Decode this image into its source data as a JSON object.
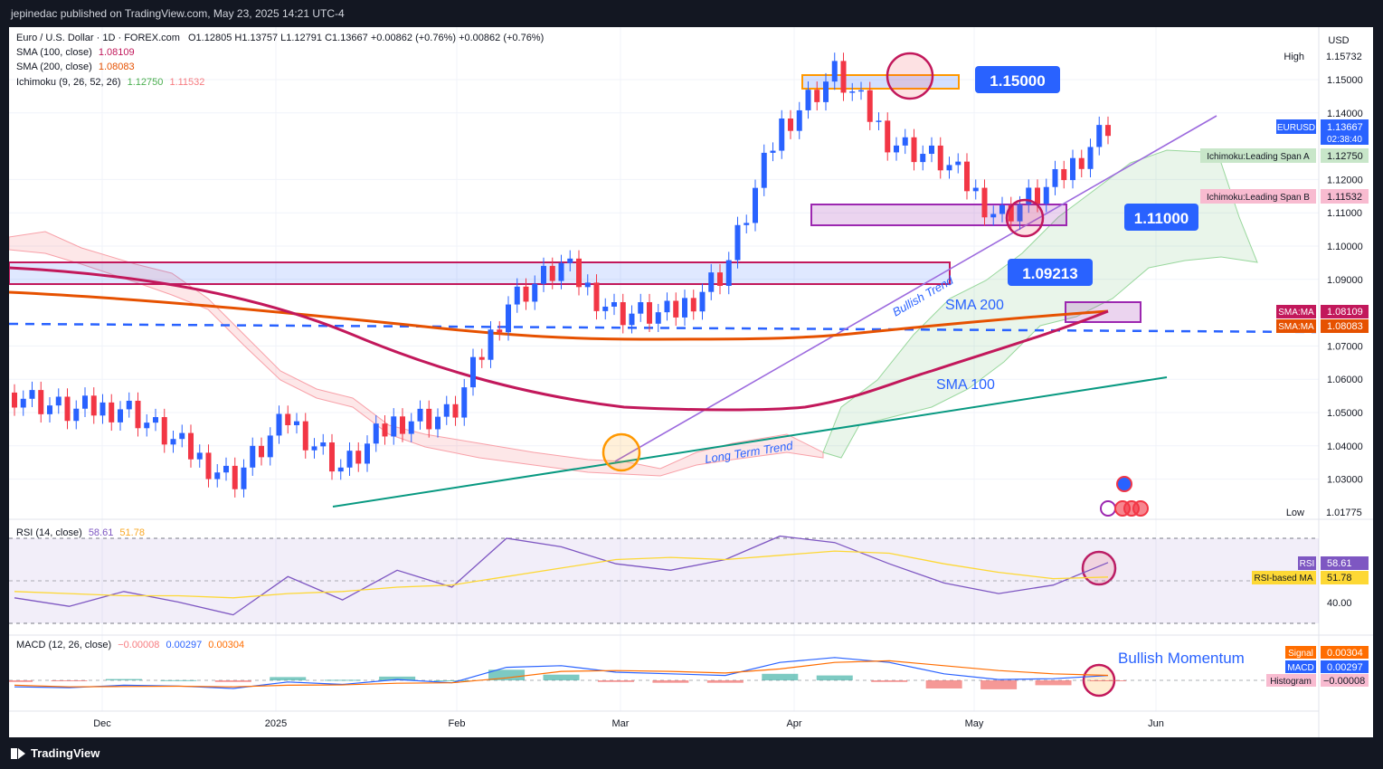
{
  "header": {
    "published": "jepinedac published on TradingView.com, May 23, 2025 14:21 UTC-4"
  },
  "legend": {
    "symbol": "Euro / U.S. Dollar · 1D · FOREX.com",
    "ohlc": "O1.12805  H1.13757  L1.12791  C1.13667  +0.00862 (+0.76%)  +0.00862 (+0.76%)",
    "sma100_label": "SMA (100, close)",
    "sma100_value": "1.08109",
    "sma200_label": "SMA (200, close)",
    "sma200_value": "1.08083",
    "ichimoku_label": "Ichimoku (9, 26, 52, 26)",
    "ichimoku_a": "1.12750",
    "ichimoku_b": "1.11532"
  },
  "currency": "USD",
  "price_axis": {
    "ticks": [
      "1.15000",
      "1.14000",
      "1.12000",
      "1.11000",
      "1.10000",
      "1.09000",
      "1.07000",
      "1.06000",
      "1.05000",
      "1.04000",
      "1.03000"
    ],
    "high_label": "High",
    "high_value": "1.15732",
    "low_label": "Low",
    "low_value": "1.01775",
    "tags": {
      "eurusd_name": "EURUSD",
      "eurusd_price": "1.13667",
      "countdown": "02:38:40",
      "span_a_name": "Ichimoku:Leading Span A",
      "span_a_value": "1.12750",
      "span_b_name": "Ichimoku:Leading Span B",
      "span_b_value": "1.11532",
      "sma_name_1": "SMA:MA",
      "sma_value_1": "1.08109",
      "sma_name_2": "SMA:MA",
      "sma_value_2": "1.08083"
    }
  },
  "annotations": {
    "level_115": "1.15000",
    "level_111": "1.11000",
    "level_109": "1.09213",
    "sma200": "SMA 200",
    "sma100": "SMA 100",
    "bullish_trend": "Bullish Trend",
    "long_term_trend": "Long Term Trend",
    "bullish_momentum": "Bullish Momentum"
  },
  "time_axis": [
    "Dec",
    "2025",
    "Feb",
    "Mar",
    "Apr",
    "May",
    "Jun"
  ],
  "rsi": {
    "label": "RSI (14, close)",
    "value": "58.61",
    "ma_value": "51.78",
    "tag_rsi": "RSI",
    "tag_ma": "RSI-based MA",
    "tick": "40.00"
  },
  "macd": {
    "label": "MACD (12, 26, close)",
    "hist": "−0.00008",
    "macd": "0.00297",
    "signal": "0.00304",
    "tag_signal": "Signal",
    "tag_macd": "MACD",
    "tag_hist": "Histogram",
    "tag_hist_value": "−0.00008"
  },
  "colors": {
    "up": "#2962ff",
    "down": "#f23645",
    "sma100": "#c2185b",
    "sma200": "#e65100",
    "trend": "#089981",
    "bull_line": "#9c6ade",
    "span_a": "#4caf50",
    "span_b": "#f23645"
  },
  "footer": {
    "brand": "TradingView"
  },
  "chart_data": {
    "type": "line",
    "title": "Euro / U.S. Dollar · 1D · FOREX.com",
    "ylim": [
      1.015,
      1.162
    ],
    "xlabel": "",
    "ylabel": "",
    "x": [
      "2024-11-13",
      "2024-11-26",
      "2024-12-10",
      "2024-12-24",
      "2025-01-08",
      "2025-01-22",
      "2025-02-05",
      "2025-02-19",
      "2025-03-03",
      "2025-03-07",
      "2025-03-18",
      "2025-03-27",
      "2025-04-02",
      "2025-04-07",
      "2025-04-11",
      "2025-04-21",
      "2025-04-30",
      "2025-05-09",
      "2025-05-12",
      "2025-05-16",
      "2025-05-23"
    ],
    "series": [
      {
        "name": "EURUSD close",
        "values": [
          1.056,
          1.05,
          1.052,
          1.04,
          1.03,
          1.048,
          1.033,
          1.048,
          1.049,
          1.083,
          1.094,
          1.08,
          1.079,
          1.093,
          1.136,
          1.152,
          1.132,
          1.125,
          1.109,
          1.118,
          1.1367
        ]
      },
      {
        "name": "SMA (100, close)",
        "values": [
          1.093,
          1.088,
          1.083,
          1.073,
          1.062,
          1.056,
          1.052,
          1.051,
          1.052,
          1.053,
          1.053,
          1.054,
          1.055,
          1.057,
          1.06,
          1.066,
          1.07,
          1.074,
          1.076,
          1.079,
          1.0811
        ]
      },
      {
        "name": "SMA (200, close)",
        "values": [
          1.087,
          1.086,
          1.085,
          1.083,
          1.081,
          1.079,
          1.078,
          1.076,
          1.074,
          1.074,
          1.074,
          1.074,
          1.075,
          1.075,
          1.076,
          1.077,
          1.078,
          1.079,
          1.08,
          1.0805,
          1.0808
        ]
      }
    ],
    "rsi": {
      "x_count": 21,
      "values": [
        42,
        38,
        45,
        40,
        34,
        52,
        41,
        55,
        47,
        70,
        66,
        58,
        55,
        60,
        71,
        68,
        58,
        49,
        44,
        48,
        58.61
      ],
      "ma": [
        45,
        44,
        43,
        43,
        42,
        44,
        45,
        47,
        48,
        52,
        56,
        60,
        61,
        60,
        62,
        64,
        63,
        58,
        54,
        51,
        51.78
      ]
    },
    "macd": {
      "macd": [
        -0.004,
        -0.0045,
        -0.003,
        -0.0035,
        -0.005,
        -0.001,
        -0.0025,
        0.0005,
        -0.0015,
        0.008,
        0.009,
        0.005,
        0.004,
        0.003,
        0.011,
        0.014,
        0.011,
        0.004,
        0.0005,
        0.001,
        0.00297
      ],
      "signal": [
        -0.003,
        -0.004,
        -0.0038,
        -0.0036,
        -0.004,
        -0.003,
        -0.0028,
        -0.0018,
        -0.0015,
        0.0015,
        0.0055,
        0.006,
        0.0055,
        0.0045,
        0.007,
        0.011,
        0.012,
        0.009,
        0.006,
        0.004,
        0.00304
      ]
    },
    "levels": [
      1.15,
      1.11,
      1.09213
    ]
  }
}
